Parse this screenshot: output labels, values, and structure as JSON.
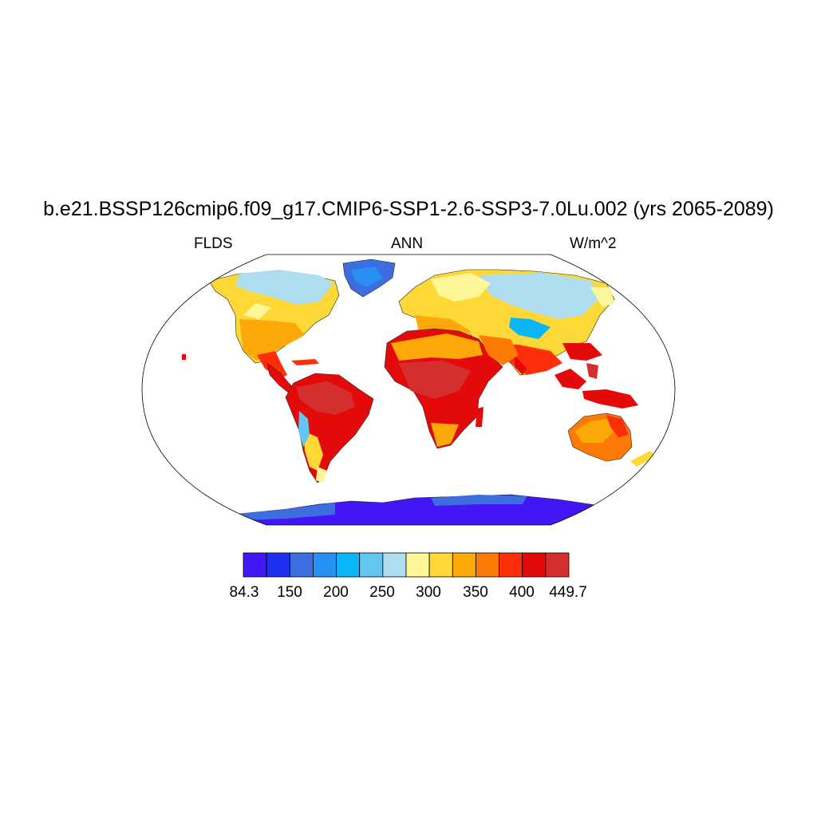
{
  "header": {
    "title": "b.e21.BSSP126cmip6.f09_g17.CMIP6-SSP1-2.6-SSP3-7.0Lu.002 (yrs 2065-2089)",
    "left": "FLDS",
    "center": "ANN",
    "right": "W/m^2"
  },
  "colorbar": {
    "colors": [
      "#4216f5",
      "#1e30f0",
      "#3d6ee0",
      "#2690f7",
      "#0bb6f8",
      "#62c6f2",
      "#afddf0",
      "#fef79a",
      "#fdd837",
      "#fca808",
      "#fd7a07",
      "#fd2f0b",
      "#e40a0a",
      "#d52e2e"
    ],
    "labels": [
      "84.3",
      "150",
      "200",
      "250",
      "300",
      "350",
      "400",
      "449.7"
    ]
  },
  "map": {
    "projection": "Robinson",
    "ocean_color": "#ffffff",
    "land_fill": "shaded by FLDS"
  }
}
